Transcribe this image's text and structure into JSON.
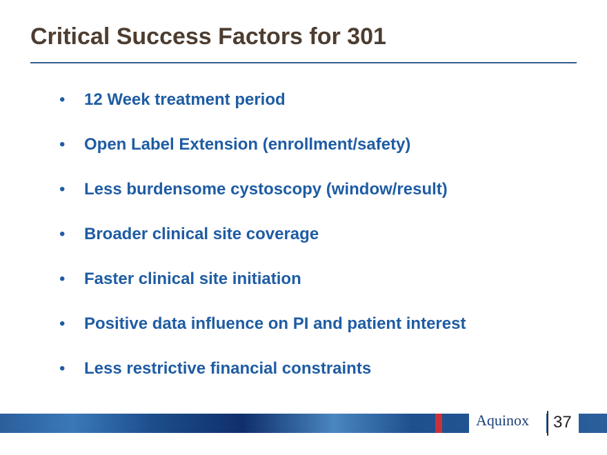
{
  "header": {
    "title": "Critical Success Factors for 301"
  },
  "bullets": [
    "12 Week treatment period",
    "Open Label Extension (enrollment/safety)",
    "Less burdensome cystoscopy (window/result)",
    "Broader clinical site coverage",
    "Faster clinical site initiation",
    "Positive data influence on PI and patient interest",
    "Less restrictive financial constraints"
  ],
  "footer": {
    "logo": "Aquinox",
    "page_number": "37"
  }
}
